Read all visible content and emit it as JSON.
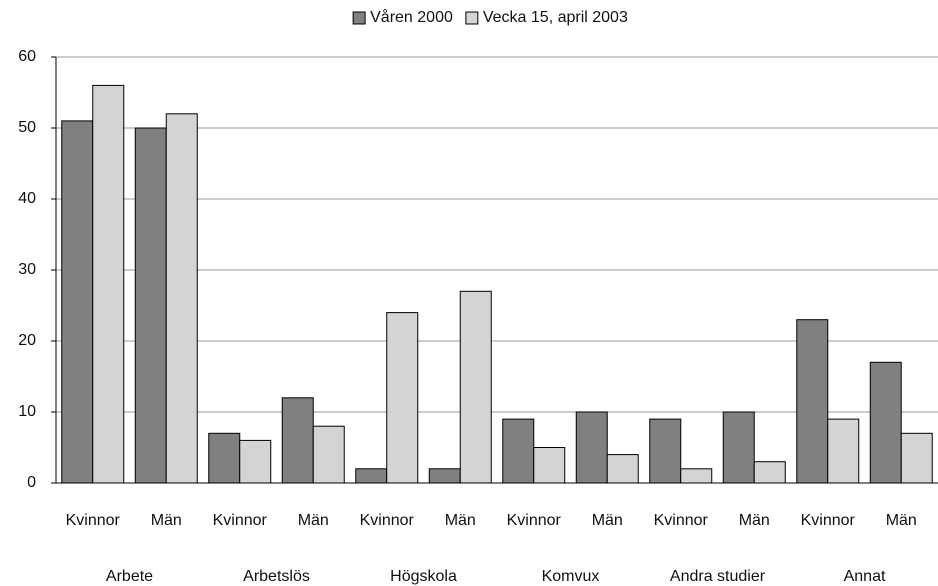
{
  "chart_data": {
    "type": "bar",
    "categories": [
      "Kvinnor",
      "Män",
      "Kvinnor",
      "Män",
      "Kvinnor",
      "Män",
      "Kvinnor",
      "Män",
      "Kvinnor",
      "Män",
      "Kvinnor",
      "Män"
    ],
    "groups": [
      "Arbete",
      "Arbetslös",
      "Högskola",
      "Komvux",
      "Andra studier",
      "Annat"
    ],
    "series": [
      {
        "name": "Våren 2000",
        "color": "#808080",
        "values": [
          51,
          50,
          7,
          12,
          2,
          2,
          9,
          10,
          9,
          10,
          23,
          17
        ]
      },
      {
        "name": "Vecka 15, april 2003",
        "color": "#d4d4d4",
        "values": [
          56,
          52,
          6,
          8,
          24,
          27,
          5,
          4,
          2,
          3,
          9,
          7
        ]
      }
    ],
    "ylim": [
      0,
      60
    ],
    "yticks": [
      0,
      10,
      20,
      30,
      40,
      50,
      60
    ],
    "grid": true,
    "legend": "top"
  }
}
